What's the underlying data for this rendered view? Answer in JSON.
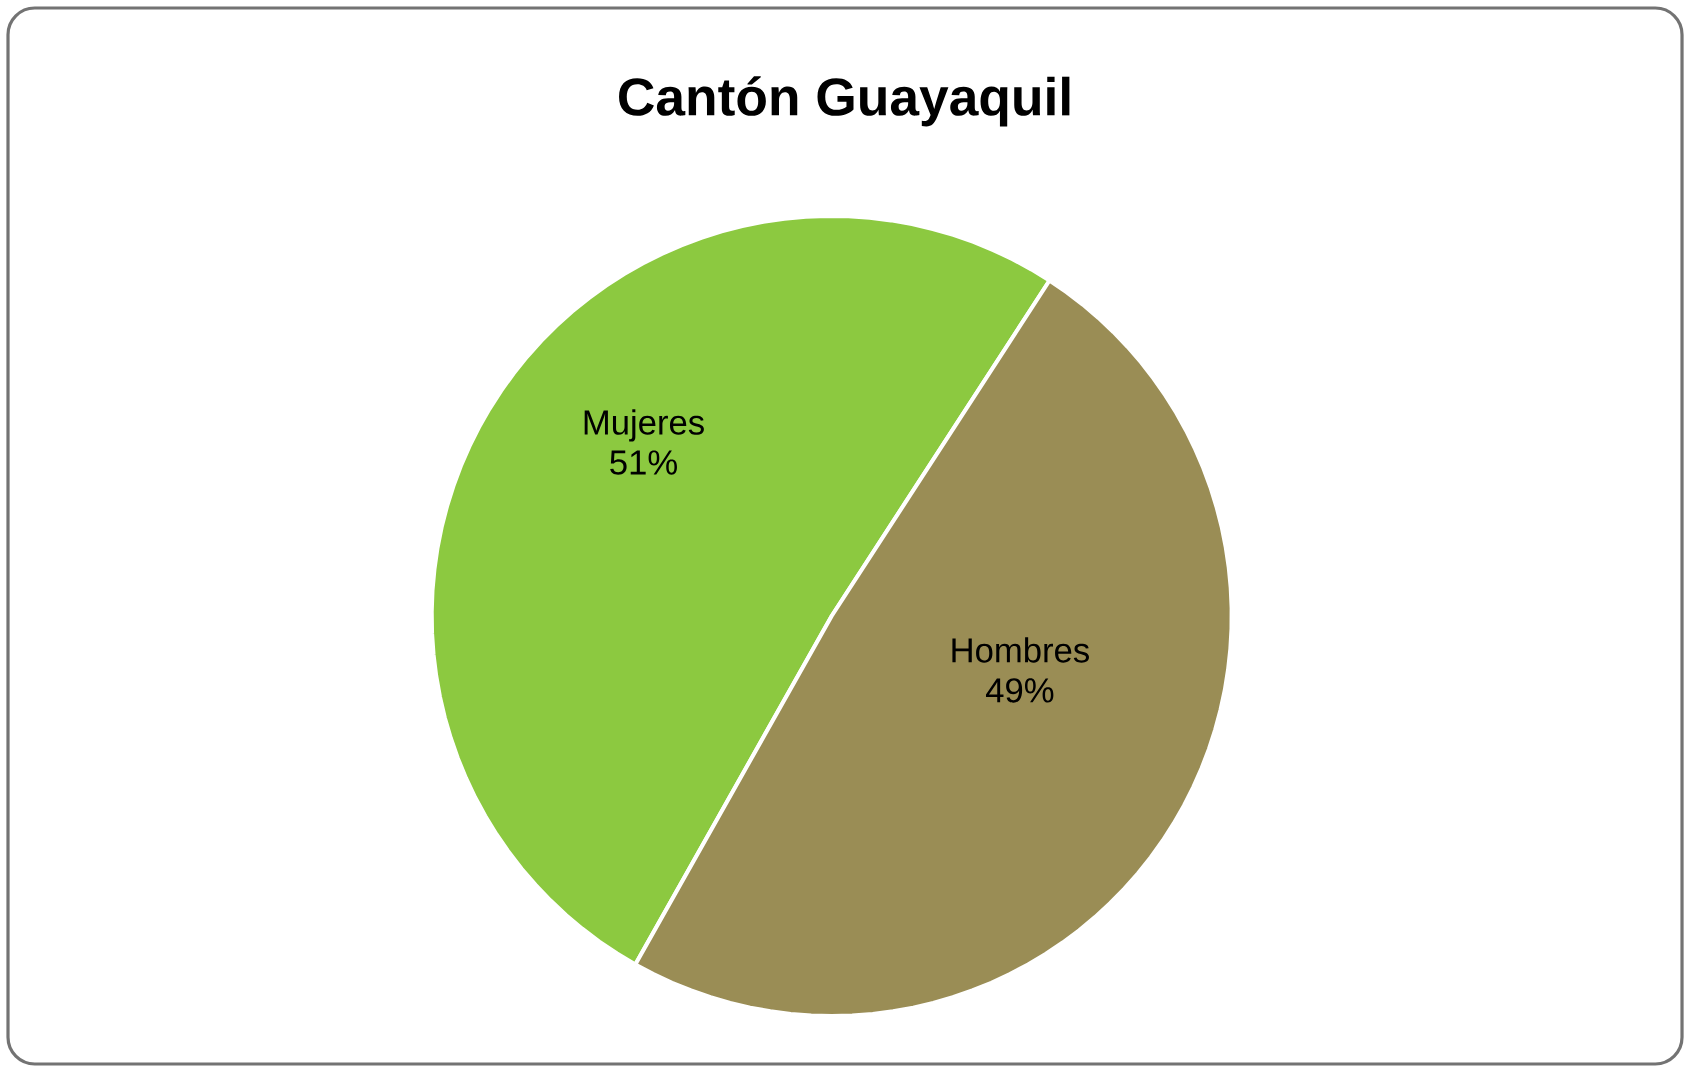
{
  "chart_data": {
    "type": "pie",
    "title": "Cantón Guayaquil",
    "categories": [
      "Mujeres",
      "Hombres"
    ],
    "values": [
      51,
      49
    ],
    "colors": [
      "#8cc940",
      "#9a8d55"
    ],
    "value_labels": [
      "51%",
      "49%"
    ]
  }
}
